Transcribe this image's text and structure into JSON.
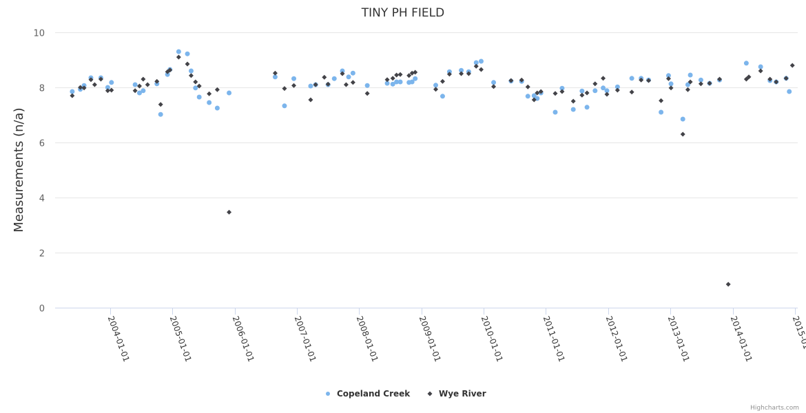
{
  "chart_data": {
    "type": "scatter",
    "title": "TINY PH FIELD",
    "xlabel": "",
    "ylabel": "Measurements (n/a)",
    "x_type": "datetime (fractional year)",
    "xlim": [
      2003.3,
      2015.0
    ],
    "ylim": [
      0,
      10
    ],
    "yticks": [
      0,
      2,
      4,
      6,
      8,
      10
    ],
    "xticks": [
      2004,
      2005,
      2006,
      2007,
      2008,
      2009,
      2010,
      2011,
      2012,
      2013,
      2014,
      2015
    ],
    "xtick_labels": [
      "2004-01-01",
      "2005-01-01",
      "2006-01-01",
      "2007-01-01",
      "2008-01-01",
      "2009-01-01",
      "2010-01-01",
      "2011-01-01",
      "2012-01-01",
      "2013-01-01",
      "2014-01-01",
      "2015-01-01"
    ],
    "grid": "horizontal",
    "legend": "bottom-center",
    "credits": "Highcharts.com",
    "series": [
      {
        "name": "Copeland Creek",
        "color": "#7cb5ec",
        "marker": "circle",
        "points": [
          [
            2003.39,
            7.85
          ],
          [
            2003.52,
            7.93
          ],
          [
            2003.58,
            8.07
          ],
          [
            2003.69,
            8.35
          ],
          [
            2003.85,
            8.35
          ],
          [
            2003.96,
            8.0
          ],
          [
            2004.02,
            8.18
          ],
          [
            2004.4,
            8.1
          ],
          [
            2004.47,
            7.8
          ],
          [
            2004.53,
            7.88
          ],
          [
            2004.75,
            8.13
          ],
          [
            2004.81,
            7.02
          ],
          [
            2004.92,
            8.47
          ],
          [
            2004.96,
            8.65
          ],
          [
            2005.1,
            9.3
          ],
          [
            2005.24,
            9.22
          ],
          [
            2005.3,
            8.6
          ],
          [
            2005.37,
            7.98
          ],
          [
            2005.43,
            7.65
          ],
          [
            2005.59,
            7.45
          ],
          [
            2005.72,
            7.25
          ],
          [
            2005.91,
            7.8
          ],
          [
            2006.65,
            8.38
          ],
          [
            2006.8,
            7.33
          ],
          [
            2006.95,
            8.32
          ],
          [
            2007.22,
            8.05
          ],
          [
            2007.3,
            8.1
          ],
          [
            2007.5,
            8.1
          ],
          [
            2007.6,
            8.32
          ],
          [
            2007.73,
            8.6
          ],
          [
            2007.83,
            8.38
          ],
          [
            2007.9,
            8.52
          ],
          [
            2008.13,
            8.07
          ],
          [
            2008.45,
            8.15
          ],
          [
            2008.54,
            8.12
          ],
          [
            2008.6,
            8.2
          ],
          [
            2008.66,
            8.2
          ],
          [
            2008.8,
            8.18
          ],
          [
            2008.85,
            8.2
          ],
          [
            2008.9,
            8.32
          ],
          [
            2009.23,
            8.08
          ],
          [
            2009.34,
            7.68
          ],
          [
            2009.45,
            8.57
          ],
          [
            2009.64,
            8.62
          ],
          [
            2009.76,
            8.57
          ],
          [
            2009.88,
            8.9
          ],
          [
            2009.96,
            8.95
          ],
          [
            2010.16,
            8.18
          ],
          [
            2010.44,
            8.23
          ],
          [
            2010.61,
            8.22
          ],
          [
            2010.71,
            7.68
          ],
          [
            2010.81,
            7.7
          ],
          [
            2010.86,
            7.6
          ],
          [
            2010.92,
            7.8
          ],
          [
            2011.15,
            7.1
          ],
          [
            2011.26,
            7.97
          ],
          [
            2011.44,
            7.2
          ],
          [
            2011.58,
            7.87
          ],
          [
            2011.66,
            7.28
          ],
          [
            2011.79,
            7.88
          ],
          [
            2011.92,
            7.98
          ],
          [
            2011.98,
            7.88
          ],
          [
            2012.15,
            8.02
          ],
          [
            2012.38,
            8.33
          ],
          [
            2012.53,
            8.33
          ],
          [
            2012.65,
            8.27
          ],
          [
            2012.85,
            7.1
          ],
          [
            2012.97,
            8.43
          ],
          [
            2013.01,
            8.13
          ],
          [
            2013.2,
            6.85
          ],
          [
            2013.28,
            8.1
          ],
          [
            2013.32,
            8.45
          ],
          [
            2013.49,
            8.27
          ],
          [
            2013.63,
            8.15
          ],
          [
            2013.79,
            8.27
          ],
          [
            2014.22,
            8.88
          ],
          [
            2014.45,
            8.75
          ],
          [
            2014.6,
            8.25
          ],
          [
            2014.7,
            8.2
          ],
          [
            2014.86,
            8.33
          ],
          [
            2014.91,
            7.85
          ]
        ]
      },
      {
        "name": "Wye River",
        "color": "#434348",
        "marker": "diamond",
        "points": [
          [
            2003.39,
            7.7
          ],
          [
            2003.52,
            8.0
          ],
          [
            2003.58,
            7.98
          ],
          [
            2003.69,
            8.28
          ],
          [
            2003.75,
            8.1
          ],
          [
            2003.85,
            8.3
          ],
          [
            2003.96,
            7.88
          ],
          [
            2004.02,
            7.9
          ],
          [
            2004.4,
            7.88
          ],
          [
            2004.47,
            8.05
          ],
          [
            2004.53,
            8.3
          ],
          [
            2004.6,
            8.1
          ],
          [
            2004.75,
            8.22
          ],
          [
            2004.81,
            7.38
          ],
          [
            2004.92,
            8.57
          ],
          [
            2004.96,
            8.63
          ],
          [
            2005.1,
            9.1
          ],
          [
            2005.24,
            8.85
          ],
          [
            2005.3,
            8.43
          ],
          [
            2005.37,
            8.2
          ],
          [
            2005.43,
            8.05
          ],
          [
            2005.59,
            7.77
          ],
          [
            2005.72,
            7.92
          ],
          [
            2005.91,
            3.47
          ],
          [
            2006.65,
            8.52
          ],
          [
            2006.8,
            7.96
          ],
          [
            2006.95,
            8.07
          ],
          [
            2007.22,
            7.55
          ],
          [
            2007.3,
            8.1
          ],
          [
            2007.44,
            8.37
          ],
          [
            2007.5,
            8.12
          ],
          [
            2007.73,
            8.5
          ],
          [
            2007.79,
            8.1
          ],
          [
            2007.9,
            8.18
          ],
          [
            2008.13,
            7.78
          ],
          [
            2008.45,
            8.28
          ],
          [
            2008.54,
            8.33
          ],
          [
            2008.6,
            8.45
          ],
          [
            2008.66,
            8.47
          ],
          [
            2008.8,
            8.43
          ],
          [
            2008.85,
            8.52
          ],
          [
            2008.9,
            8.55
          ],
          [
            2009.23,
            7.93
          ],
          [
            2009.34,
            8.22
          ],
          [
            2009.45,
            8.48
          ],
          [
            2009.64,
            8.5
          ],
          [
            2009.76,
            8.5
          ],
          [
            2009.88,
            8.77
          ],
          [
            2009.96,
            8.65
          ],
          [
            2010.16,
            8.03
          ],
          [
            2010.44,
            8.25
          ],
          [
            2010.61,
            8.27
          ],
          [
            2010.71,
            8.02
          ],
          [
            2010.81,
            7.55
          ],
          [
            2010.86,
            7.8
          ],
          [
            2010.92,
            7.85
          ],
          [
            2011.15,
            7.78
          ],
          [
            2011.26,
            7.85
          ],
          [
            2011.44,
            7.5
          ],
          [
            2011.58,
            7.72
          ],
          [
            2011.66,
            7.8
          ],
          [
            2011.79,
            8.13
          ],
          [
            2011.92,
            8.33
          ],
          [
            2011.98,
            7.75
          ],
          [
            2012.15,
            7.9
          ],
          [
            2012.38,
            7.83
          ],
          [
            2012.53,
            8.27
          ],
          [
            2012.65,
            8.25
          ],
          [
            2012.85,
            7.52
          ],
          [
            2012.97,
            8.32
          ],
          [
            2013.01,
            7.98
          ],
          [
            2013.2,
            6.3
          ],
          [
            2013.28,
            7.92
          ],
          [
            2013.32,
            8.2
          ],
          [
            2013.49,
            8.13
          ],
          [
            2013.63,
            8.15
          ],
          [
            2013.79,
            8.3
          ],
          [
            2013.93,
            0.85
          ],
          [
            2014.22,
            8.3
          ],
          [
            2014.26,
            8.38
          ],
          [
            2014.45,
            8.6
          ],
          [
            2014.6,
            8.3
          ],
          [
            2014.7,
            8.2
          ],
          [
            2014.86,
            8.33
          ],
          [
            2014.96,
            8.8
          ]
        ]
      }
    ]
  }
}
